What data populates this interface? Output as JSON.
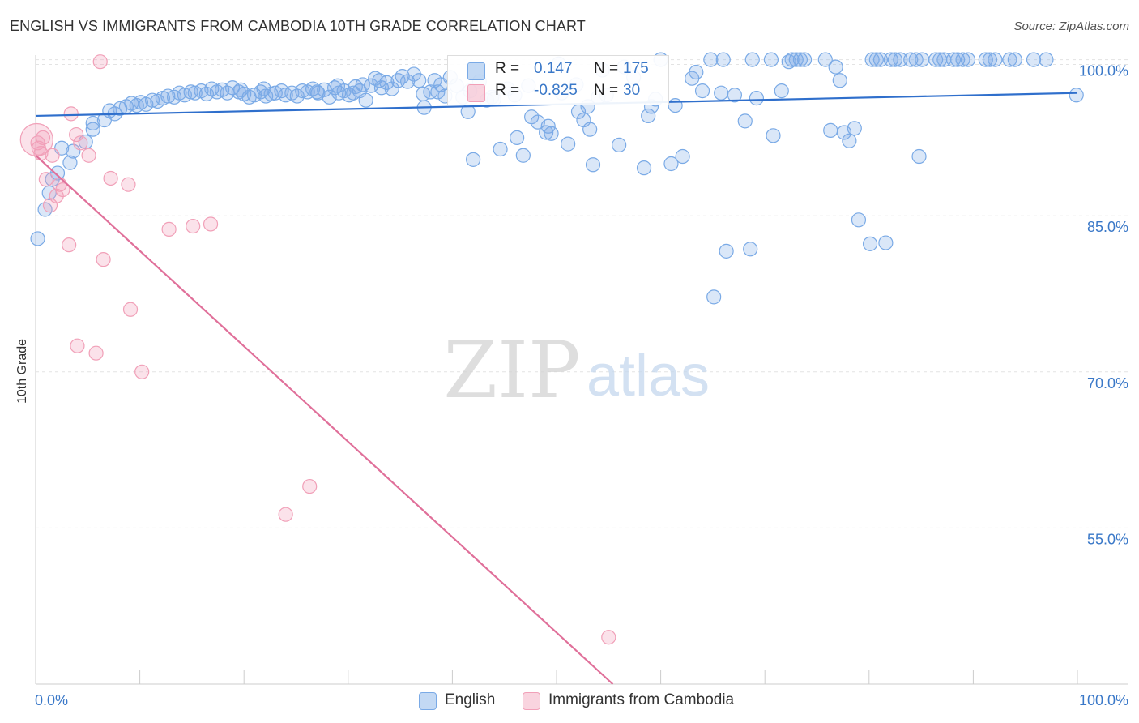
{
  "title": "ENGLISH VS IMMIGRANTS FROM CAMBODIA 10TH GRADE CORRELATION CHART",
  "source": "Source: ZipAtlas.com",
  "watermark": {
    "zip": "ZIP",
    "atlas": "atlas"
  },
  "colors": {
    "english": "#7aaae6",
    "english_fill": "rgba(122,170,230,0.28)",
    "english_line": "#2f6fcc",
    "cambodia": "#f1a0b8",
    "cambodia_fill": "rgba(241,160,184,0.30)",
    "cambodia_line": "#e0709a",
    "tick_label": "#3a78c8",
    "grid": "#e3e3e3"
  },
  "stats": [
    {
      "r_label": "R =",
      "r_value": " 0.147",
      "n_label": "N =",
      "n_value": "175",
      "color": "#7aaae6"
    },
    {
      "r_label": "R =",
      "r_value": "-0.825",
      "n_label": "N =",
      "n_value": " 30",
      "color": "#f1a0b8"
    }
  ],
  "legend": [
    {
      "label": "English",
      "color": "#7aaae6"
    },
    {
      "label": "Immigrants from Cambodia",
      "color": "#f1a0b8"
    }
  ],
  "chart_data": {
    "type": "scatter",
    "title": "ENGLISH VS IMMIGRANTS FROM CAMBODIA 10TH GRADE CORRELATION CHART",
    "xlabel": "",
    "ylabel": "10th Grade",
    "xlim": [
      0,
      100
    ],
    "ylim": [
      40,
      102.5
    ],
    "x_tick_labels": [
      {
        "value": 0,
        "label": "0.0%"
      },
      {
        "value": 100,
        "label": "100.0%"
      }
    ],
    "y_tick_labels": [
      {
        "value": 100,
        "label": "100.0%"
      },
      {
        "value": 85,
        "label": "85.0%"
      },
      {
        "value": 70,
        "label": "70.0%"
      },
      {
        "value": 55,
        "label": "55.0%"
      }
    ],
    "grid": true,
    "legend_position": "bottom",
    "series": [
      {
        "name": "English",
        "trend": {
          "x": [
            0,
            100
          ],
          "y": [
            94.6,
            96.8
          ]
        },
        "points": [
          [
            0.2,
            82.8
          ],
          [
            0.9,
            85.6
          ],
          [
            1.3,
            87.2
          ],
          [
            1.6,
            88.5
          ],
          [
            2.1,
            89.1
          ],
          [
            2.5,
            91.5
          ],
          [
            3.3,
            90.1
          ],
          [
            3.6,
            91.2
          ],
          [
            4.8,
            92.1
          ],
          [
            5.5,
            93.3
          ],
          [
            5.5,
            93.9
          ],
          [
            6.6,
            94.2
          ],
          [
            7.1,
            95.1
          ],
          [
            7.6,
            94.8
          ],
          [
            8.1,
            95.3
          ],
          [
            8.7,
            95.5
          ],
          [
            9.2,
            95.8
          ],
          [
            9.7,
            95.6
          ],
          [
            10.1,
            95.9
          ],
          [
            10.6,
            95.7
          ],
          [
            11.2,
            96.1
          ],
          [
            11.7,
            96.0
          ],
          [
            12.2,
            96.3
          ],
          [
            12.7,
            96.5
          ],
          [
            13.3,
            96.4
          ],
          [
            13.8,
            96.8
          ],
          [
            14.3,
            96.6
          ],
          [
            14.9,
            96.9
          ],
          [
            15.3,
            96.8
          ],
          [
            15.9,
            97.0
          ],
          [
            16.4,
            96.7
          ],
          [
            16.9,
            97.2
          ],
          [
            17.4,
            96.9
          ],
          [
            17.9,
            97.1
          ],
          [
            18.4,
            96.8
          ],
          [
            18.9,
            97.3
          ],
          [
            19.5,
            96.9
          ],
          [
            20.0,
            96.7
          ],
          [
            20.5,
            96.4
          ],
          [
            21.0,
            96.6
          ],
          [
            21.6,
            96.9
          ],
          [
            22.1,
            96.5
          ],
          [
            22.6,
            96.7
          ],
          [
            23.0,
            96.8
          ],
          [
            23.6,
            97.0
          ],
          [
            24.0,
            96.6
          ],
          [
            24.6,
            96.8
          ],
          [
            25.1,
            96.5
          ],
          [
            25.6,
            97.0
          ],
          [
            26.1,
            96.9
          ],
          [
            26.6,
            97.2
          ],
          [
            27.1,
            96.8
          ],
          [
            27.7,
            97.1
          ],
          [
            28.2,
            96.4
          ],
          [
            28.7,
            97.3
          ],
          [
            29.1,
            96.8
          ],
          [
            29.6,
            97.0
          ],
          [
            30.1,
            96.6
          ],
          [
            30.7,
            97.4
          ],
          [
            31.1,
            97.0
          ],
          [
            31.7,
            96.1
          ],
          [
            32.2,
            97.5
          ],
          [
            32.6,
            98.2
          ],
          [
            33.2,
            97.3
          ],
          [
            33.7,
            97.8
          ],
          [
            34.2,
            97.2
          ],
          [
            34.8,
            98.0
          ],
          [
            35.2,
            98.4
          ],
          [
            35.7,
            97.9
          ],
          [
            36.3,
            98.6
          ],
          [
            36.8,
            98.0
          ],
          [
            37.2,
            96.7
          ],
          [
            37.3,
            95.4
          ],
          [
            37.9,
            96.9
          ],
          [
            38.3,
            98.0
          ],
          [
            38.9,
            97.6
          ],
          [
            39.3,
            96.5
          ],
          [
            39.8,
            98.3
          ],
          [
            40.4,
            97.5
          ],
          [
            41.0,
            96.4
          ],
          [
            41.5,
            95.0
          ],
          [
            41.7,
            97.0
          ],
          [
            42.0,
            90.4
          ],
          [
            42.6,
            97.9
          ],
          [
            43.3,
            96.1
          ],
          [
            43.8,
            96.4
          ],
          [
            44.6,
            91.4
          ],
          [
            45.3,
            97.2
          ],
          [
            46.0,
            96.6
          ],
          [
            46.2,
            92.5
          ],
          [
            46.8,
            90.8
          ],
          [
            47.3,
            97.5
          ],
          [
            47.6,
            94.5
          ],
          [
            48.2,
            94.0
          ],
          [
            49.0,
            93.0
          ],
          [
            49.2,
            93.6
          ],
          [
            50.2,
            99.6
          ],
          [
            50.5,
            96.8
          ],
          [
            51.1,
            91.9
          ],
          [
            51.9,
            97.6
          ],
          [
            52.1,
            95.0
          ],
          [
            52.6,
            94.2
          ],
          [
            53.0,
            95.5
          ],
          [
            53.2,
            93.3
          ],
          [
            53.5,
            89.9
          ],
          [
            54.0,
            96.4
          ],
          [
            54.4,
            99.0
          ],
          [
            54.8,
            96.6
          ],
          [
            56.0,
            91.8
          ],
          [
            56.5,
            99.3
          ],
          [
            58.4,
            89.6
          ],
          [
            58.8,
            94.6
          ],
          [
            59.1,
            95.5
          ],
          [
            59.5,
            96.2
          ],
          [
            60.0,
            100.0
          ],
          [
            61.0,
            90.0
          ],
          [
            61.4,
            95.6
          ],
          [
            62.1,
            90.7
          ],
          [
            63.0,
            98.2
          ],
          [
            63.4,
            98.8
          ],
          [
            64.0,
            97.0
          ],
          [
            64.8,
            100.0
          ],
          [
            65.1,
            77.2
          ],
          [
            65.8,
            96.8
          ],
          [
            66.0,
            100.0
          ],
          [
            66.3,
            81.6
          ],
          [
            67.1,
            96.6
          ],
          [
            68.1,
            94.1
          ],
          [
            68.6,
            81.8
          ],
          [
            68.8,
            100.0
          ],
          [
            69.2,
            96.3
          ],
          [
            70.6,
            100.0
          ],
          [
            70.8,
            92.7
          ],
          [
            71.6,
            97.0
          ],
          [
            72.3,
            99.8
          ],
          [
            72.6,
            100.0
          ],
          [
            73.0,
            100.0
          ],
          [
            73.4,
            100.0
          ],
          [
            73.8,
            100.0
          ],
          [
            75.8,
            100.0
          ],
          [
            76.3,
            93.2
          ],
          [
            76.8,
            99.3
          ],
          [
            77.2,
            98.0
          ],
          [
            77.6,
            93.0
          ],
          [
            78.1,
            92.2
          ],
          [
            78.6,
            93.4
          ],
          [
            79.0,
            84.6
          ],
          [
            80.1,
            82.3
          ],
          [
            80.3,
            100.0
          ],
          [
            80.7,
            100.0
          ],
          [
            81.1,
            100.0
          ],
          [
            81.6,
            82.4
          ],
          [
            82.1,
            100.0
          ],
          [
            82.5,
            100.0
          ],
          [
            83.0,
            100.0
          ],
          [
            84.0,
            100.0
          ],
          [
            84.5,
            100.0
          ],
          [
            84.8,
            90.7
          ],
          [
            85.1,
            100.0
          ],
          [
            86.4,
            100.0
          ],
          [
            86.8,
            100.0
          ],
          [
            87.2,
            100.0
          ],
          [
            88.1,
            100.0
          ],
          [
            88.5,
            100.0
          ],
          [
            89.0,
            100.0
          ],
          [
            89.5,
            100.0
          ],
          [
            91.2,
            100.0
          ],
          [
            91.6,
            100.0
          ],
          [
            92.1,
            100.0
          ],
          [
            93.5,
            100.0
          ],
          [
            94.0,
            100.0
          ],
          [
            95.8,
            100.0
          ],
          [
            97.0,
            100.0
          ],
          [
            99.9,
            96.6
          ],
          [
            27.0,
            96.9
          ],
          [
            33.0,
            98.0
          ],
          [
            49.5,
            92.9
          ],
          [
            57.4,
            98.3
          ],
          [
            44.0,
            96.2
          ],
          [
            38.6,
            96.9
          ],
          [
            31.4,
            97.6
          ],
          [
            30.5,
            96.8
          ],
          [
            29.0,
            97.5
          ],
          [
            21.9,
            97.2
          ],
          [
            19.7,
            97.1
          ]
        ]
      },
      {
        "name": "Immigrants from Cambodia",
        "trend": {
          "x": [
            0,
            55.4
          ],
          "y": [
            90.8,
            40
          ]
        },
        "points": [
          [
            0.2,
            92.0
          ],
          [
            0.3,
            91.5
          ],
          [
            0.5,
            91.0
          ],
          [
            0.7,
            92.5
          ],
          [
            1.0,
            88.5
          ],
          [
            1.4,
            86.0
          ],
          [
            1.6,
            90.8
          ],
          [
            2.0,
            86.9
          ],
          [
            2.3,
            88.0
          ],
          [
            2.6,
            87.5
          ],
          [
            3.2,
            82.2
          ],
          [
            3.4,
            94.8
          ],
          [
            3.9,
            92.8
          ],
          [
            4.0,
            72.5
          ],
          [
            4.3,
            92.0
          ],
          [
            5.1,
            90.8
          ],
          [
            5.8,
            71.8
          ],
          [
            6.2,
            99.8
          ],
          [
            6.5,
            80.8
          ],
          [
            7.2,
            88.6
          ],
          [
            8.9,
            88.0
          ],
          [
            9.1,
            76.0
          ],
          [
            10.2,
            70.0
          ],
          [
            12.8,
            83.7
          ],
          [
            15.1,
            84.0
          ],
          [
            16.8,
            84.2
          ],
          [
            24.0,
            56.3
          ],
          [
            26.3,
            59.0
          ],
          [
            55.0,
            44.5
          ],
          [
            0.1,
            92.3
          ]
        ]
      }
    ]
  }
}
